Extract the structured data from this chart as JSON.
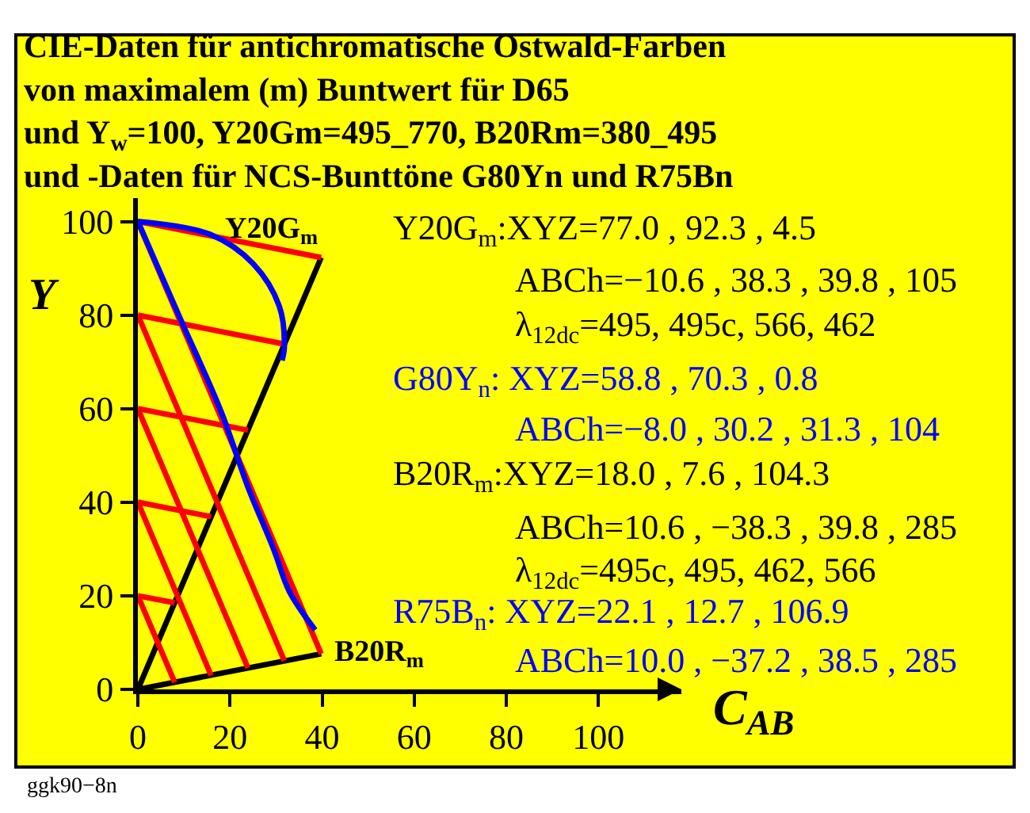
{
  "chart_data": {
    "type": "line",
    "title": "CIE-Daten für antichromatische Ostwald-Farben\nvon maximalem (m) Buntwert für D65\nund Y$_{w}$=100, Y20Gm=495_770, B20Rm=380_495\nund -Daten für NCS-Bunttöne G80Yn und R75Bn",
    "xlabel": "C$_{AB}$",
    "ylabel": "Y",
    "xlim": [
      0,
      118
    ],
    "ylim": [
      0,
      105
    ],
    "xticks": [
      0,
      20,
      40,
      60,
      80,
      100
    ],
    "yticks": [
      0,
      20,
      40,
      60,
      80,
      100
    ],
    "grid": false,
    "marker": "none",
    "line_style": "solid",
    "series": [
      {
        "color": "#000000",
        "x": [
          39.8,
          0,
          39.8
        ],
        "values": [
          92.3,
          0,
          7.6
        ]
      },
      {
        "color": "#ff0000",
        "x": [
          0,
          39.8
        ],
        "values": [
          100,
          92.3
        ]
      },
      {
        "color": "#ff0000",
        "x": [
          0,
          31.8
        ],
        "values": [
          80,
          73.8
        ]
      },
      {
        "color": "#ff0000",
        "x": [
          0,
          23.9
        ],
        "values": [
          60,
          55.4
        ]
      },
      {
        "color": "#ff0000",
        "x": [
          0,
          15.9
        ],
        "values": [
          40,
          36.9
        ]
      },
      {
        "color": "#ff0000",
        "x": [
          0,
          8.0
        ],
        "values": [
          20,
          18.5
        ]
      },
      {
        "color": "#ff0000",
        "x": [
          0,
          39.8
        ],
        "values": [
          100,
          7.6
        ]
      },
      {
        "color": "#ff0000",
        "x": [
          0,
          31.8
        ],
        "values": [
          80,
          6.1
        ]
      },
      {
        "color": "#ff0000",
        "x": [
          0,
          23.9
        ],
        "values": [
          60,
          4.6
        ]
      },
      {
        "color": "#ff0000",
        "x": [
          0,
          15.9
        ],
        "values": [
          40,
          3.0
        ]
      },
      {
        "color": "#ff0000",
        "x": [
          0,
          8.0
        ],
        "values": [
          20,
          1.5
        ]
      },
      {
        "color": "#0000ff",
        "x": [
          0,
          15.8,
          25.0,
          30.7,
          31.8,
          31.3
        ],
        "values": [
          100,
          97.2,
          91.0,
          81.9,
          73.2,
          70.3
        ]
      },
      {
        "color": "#0000ff",
        "x": [
          0,
          9.0,
          18.1,
          23.8,
          29.5,
          32.9,
          38.5
        ],
        "values": [
          100,
          79.7,
          59.3,
          43.5,
          29.9,
          20.9,
          12.7
        ]
      }
    ],
    "annotations": [
      {
        "text": "Y20G$_{m}$",
        "x": 39.8,
        "y": 92.3
      },
      {
        "text": "B20R$_{m}$",
        "x": 39.8,
        "y": 7.6
      },
      "Y20G$_{m}$:XYZ=77.0 , 92.3 , 4.5",
      "ABCh=−10.6 , 38.3 , 39.8 , 105",
      "λ$_{12dc}$=495, 495c, 566, 462",
      "G80Y$_{n}$: XYZ=58.8 , 70.3 , 0.8",
      "ABCh=−8.0 , 30.2 , 31.3 , 104",
      "B20R$_{m}$:XYZ=18.0 , 7.6 , 104.3",
      "ABCh=10.6 , −38.3 , 39.8 , 285",
      "λ$_{12dc}$=495c, 495, 462, 566",
      "R75B$_{n}$: XYZ=22.1 , 12.7 , 106.9",
      "ABCh=10.0 , −37.2 , 38.5 , 285",
      "ggk90−8n"
    ]
  }
}
